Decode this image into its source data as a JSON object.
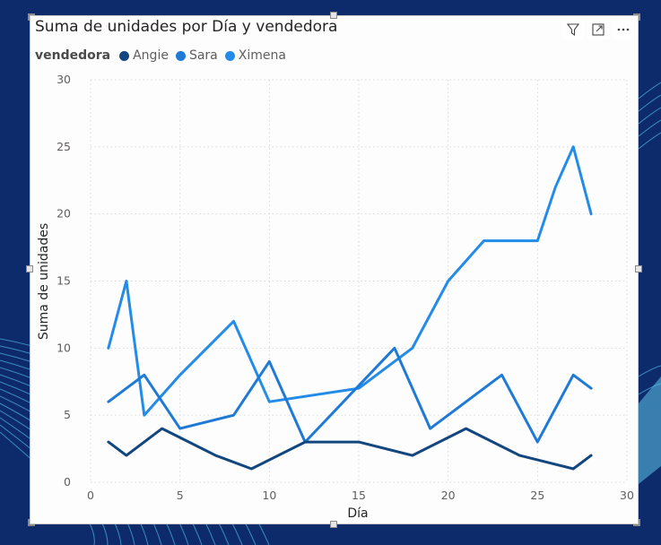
{
  "visual": {
    "title": "Suma de unidades por Día y vendedora",
    "legend_title": "vendedora"
  },
  "header_icons": [
    "filter-icon",
    "focus-mode-icon",
    "more-options-icon"
  ],
  "colors": {
    "background": "#0d2a6b",
    "accent_wave": "#4fb7e6",
    "Angie": "#12467f",
    "Sara": "#1f7ad6",
    "Ximena": "#238be8",
    "grid": "#d9d9d9"
  },
  "chart_data": {
    "type": "line",
    "xlabel": "Día",
    "ylabel": "Suma de unidades",
    "xlim": [
      0,
      30
    ],
    "ylim": [
      0,
      30
    ],
    "xticks": [
      0,
      5,
      10,
      15,
      20,
      25,
      30
    ],
    "yticks": [
      0,
      5,
      10,
      15,
      20,
      25,
      30
    ],
    "grid": true,
    "legend_position": "top-left",
    "series": [
      {
        "name": "Angie",
        "points": [
          [
            1,
            3
          ],
          [
            2,
            2
          ],
          [
            4,
            4
          ],
          [
            7,
            2
          ],
          [
            9,
            1
          ],
          [
            12,
            3
          ],
          [
            15,
            3
          ],
          [
            18,
            2
          ],
          [
            21,
            4
          ],
          [
            24,
            2
          ],
          [
            27,
            1
          ],
          [
            28,
            2
          ]
        ]
      },
      {
        "name": "Sara",
        "points": [
          [
            1,
            6
          ],
          [
            3,
            8
          ],
          [
            5,
            4
          ],
          [
            8,
            5
          ],
          [
            10,
            9
          ],
          [
            12,
            3
          ],
          [
            17,
            10
          ],
          [
            19,
            4
          ],
          [
            23,
            8
          ],
          [
            25,
            3
          ],
          [
            27,
            8
          ],
          [
            28,
            7
          ]
        ]
      },
      {
        "name": "Ximena",
        "points": [
          [
            1,
            10
          ],
          [
            2,
            15
          ],
          [
            3,
            5
          ],
          [
            5,
            8
          ],
          [
            8,
            12
          ],
          [
            10,
            6
          ],
          [
            15,
            7
          ],
          [
            18,
            10
          ],
          [
            20,
            15
          ],
          [
            22,
            18
          ],
          [
            25,
            18
          ],
          [
            26,
            22
          ],
          [
            27,
            25
          ],
          [
            28,
            20
          ]
        ]
      }
    ]
  }
}
